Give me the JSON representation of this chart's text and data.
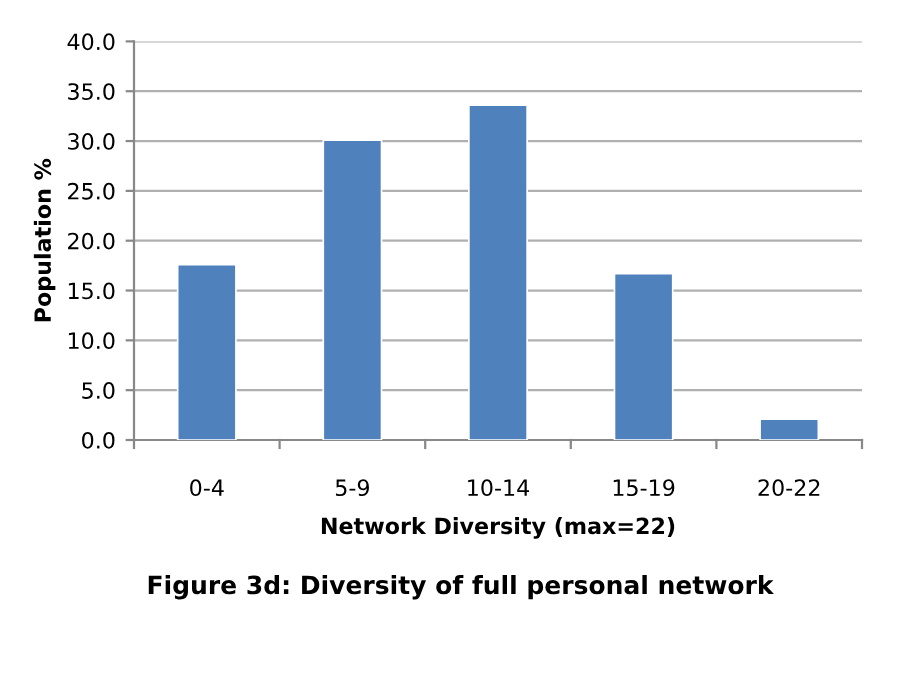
{
  "chart_data": {
    "type": "bar",
    "categories": [
      "0-4",
      "5-9",
      "10-14",
      "15-19",
      "20-22"
    ],
    "values": [
      17.6,
      30.1,
      33.6,
      16.7,
      2.1
    ],
    "color": "#4f81bd",
    "xlabel": "Network Diversity (max=22)",
    "ylabel": "Population %",
    "ylim": [
      0,
      40
    ],
    "yticks": [
      {
        "value": 0,
        "label": "0.0"
      },
      {
        "value": 5,
        "label": "5.0"
      },
      {
        "value": 10,
        "label": "10.0"
      },
      {
        "value": 15,
        "label": "15.0"
      },
      {
        "value": 20,
        "label": "20.0"
      },
      {
        "value": 25,
        "label": "25.0"
      },
      {
        "value": 30,
        "label": "30.0"
      },
      {
        "value": 35,
        "label": "35.0"
      },
      {
        "value": 40,
        "label": "40.0"
      }
    ],
    "grid": "y",
    "annotations": [
      "Figure 3d: Diversity of full personal network"
    ]
  }
}
